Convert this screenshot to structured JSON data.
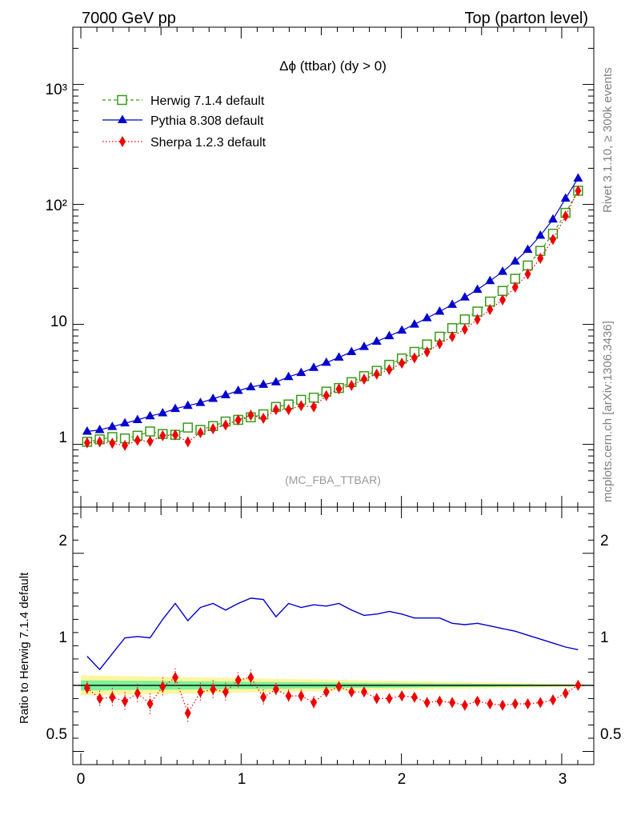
{
  "header": {
    "left": "7000 GeV pp",
    "right": "Top (parton level)"
  },
  "side_labels": {
    "rivet": "Rivet 3.1.10, ≥ 300k events",
    "mcplots": "mcplots.cern.ch [arXiv:1306.3436]"
  },
  "chart_data": [
    {
      "type": "scatter",
      "title": "Δϕ (ttbar) (dy > 0)",
      "annotation": "(MC_FBA_TTBAR)",
      "y_scale": "log",
      "ylim": [
        0.3,
        3000
      ],
      "xlim": [
        -0.05,
        3.2
      ],
      "y_ticks": [
        "1",
        "10",
        "10²",
        "10³"
      ],
      "legend_position": "top-left",
      "x": [
        0.0393,
        0.1178,
        0.1963,
        0.2749,
        0.3534,
        0.432,
        0.5105,
        0.589,
        0.6676,
        0.7461,
        0.8247,
        0.9032,
        0.9817,
        1.0603,
        1.1388,
        1.2174,
        1.2959,
        1.3744,
        1.453,
        1.5315,
        1.6101,
        1.6886,
        1.7671,
        1.8457,
        1.9242,
        2.0028,
        2.0813,
        2.1598,
        2.2384,
        2.3169,
        2.3955,
        2.474,
        2.5525,
        2.6311,
        2.7096,
        2.7882,
        2.8667,
        2.9452,
        3.0238,
        3.1023
      ],
      "series": [
        {
          "name": "Herwig 7.1.4 default",
          "color": "#3a9a1a",
          "marker": "open-square",
          "line": "dashed",
          "values": [
            1.05,
            1.1,
            1.15,
            1.12,
            1.18,
            1.28,
            1.22,
            1.2,
            1.38,
            1.32,
            1.42,
            1.55,
            1.6,
            1.68,
            1.78,
            2.05,
            2.15,
            2.35,
            2.45,
            2.75,
            2.95,
            3.3,
            3.7,
            4.1,
            4.6,
            5.2,
            5.9,
            6.8,
            7.9,
            9.3,
            11,
            12.8,
            15.5,
            19,
            24,
            31,
            41,
            57,
            85,
            130
          ]
        },
        {
          "name": "Pythia 8.308 default",
          "color": "#0000cc",
          "marker": "filled-triangle",
          "line": "solid",
          "values": [
            1.28,
            1.32,
            1.4,
            1.5,
            1.6,
            1.72,
            1.82,
            1.98,
            2.1,
            2.22,
            2.4,
            2.58,
            2.8,
            3.0,
            3.15,
            3.3,
            3.65,
            3.95,
            4.35,
            4.8,
            5.3,
            5.9,
            6.5,
            7.2,
            8.0,
            8.9,
            10.0,
            11.3,
            12.8,
            14.6,
            16.8,
            19.5,
            23,
            27.5,
            33.5,
            42,
            55,
            75,
            112,
            165
          ]
        },
        {
          "name": "Sherpa 1.2.3 default",
          "color": "#ee0000",
          "marker": "filled-diamond",
          "line": "dotted",
          "values": [
            1.03,
            1.05,
            1.02,
            0.98,
            1.08,
            1.06,
            1.18,
            1.2,
            1.05,
            1.25,
            1.35,
            1.45,
            1.6,
            1.75,
            1.65,
            1.95,
            1.95,
            2.1,
            2.05,
            2.55,
            2.9,
            3.1,
            3.5,
            3.85,
            4.2,
            4.75,
            5.25,
            5.9,
            6.9,
            7.9,
            9.1,
            11.0,
            13.3,
            16.0,
            20.4,
            26.3,
            35.5,
            51,
            80,
            130
          ]
        }
      ]
    },
    {
      "type": "scatter",
      "ylabel": "Ratio to Herwig 7.1.4 default",
      "y_scale": "linear",
      "ylim": [
        0.4,
        2.35
      ],
      "y_ticks": [
        0.5,
        1,
        2
      ],
      "x_ticks": [
        0,
        1,
        2,
        3
      ],
      "reference": "Herwig 7.1.4 default",
      "x": [
        0.0393,
        0.1178,
        0.1963,
        0.2749,
        0.3534,
        0.432,
        0.5105,
        0.589,
        0.6676,
        0.7461,
        0.8247,
        0.9032,
        0.9817,
        1.0603,
        1.1388,
        1.2174,
        1.2959,
        1.3744,
        1.453,
        1.5315,
        1.6101,
        1.6886,
        1.7671,
        1.8457,
        1.9242,
        2.0028,
        2.0813,
        2.1598,
        2.2384,
        2.3169,
        2.3955,
        2.474,
        2.5525,
        2.6311,
        2.7096,
        2.7882,
        2.8667,
        2.9452,
        3.0238,
        3.1023
      ],
      "series": [
        {
          "name": "Pythia 8.308 default",
          "color": "#0000cc",
          "values": [
            1.22,
            1.12,
            1.24,
            1.36,
            1.37,
            1.36,
            1.5,
            1.62,
            1.49,
            1.59,
            1.62,
            1.57,
            1.62,
            1.66,
            1.65,
            1.52,
            1.62,
            1.59,
            1.61,
            1.6,
            1.62,
            1.57,
            1.53,
            1.54,
            1.56,
            1.54,
            1.51,
            1.51,
            1.51,
            1.47,
            1.46,
            1.47,
            1.45,
            1.43,
            1.41,
            1.38,
            1.35,
            1.32,
            1.29,
            1.27
          ]
        },
        {
          "name": "Sherpa 1.2.3 default",
          "color": "#ee0000",
          "values": [
            0.98,
            0.9,
            0.91,
            0.88,
            0.94,
            0.86,
            0.99,
            1.06,
            0.79,
            0.95,
            0.97,
            0.95,
            1.04,
            1.06,
            0.91,
            0.97,
            0.92,
            0.92,
            0.87,
            0.95,
            0.99,
            0.95,
            0.95,
            0.9,
            0.9,
            0.92,
            0.91,
            0.87,
            0.88,
            0.87,
            0.85,
            0.88,
            0.86,
            0.85,
            0.86,
            0.86,
            0.87,
            0.89,
            0.94,
            1.0
          ],
          "errors": [
            0.05,
            0.06,
            0.07,
            0.07,
            0.07,
            0.08,
            0.07,
            0.07,
            0.07,
            0.07,
            0.07,
            0.07,
            0.06,
            0.06,
            0.06,
            0.05,
            0.05,
            0.05,
            0.05,
            0.04,
            0.04,
            0.03,
            0.03,
            0.03,
            0.03,
            0.02,
            0.02,
            0.02,
            0.02,
            0.02,
            0.02,
            0.015,
            0.015,
            0.01,
            0.01,
            0.01,
            0.01,
            0.01,
            0.01,
            0.01
          ]
        }
      ]
    }
  ]
}
